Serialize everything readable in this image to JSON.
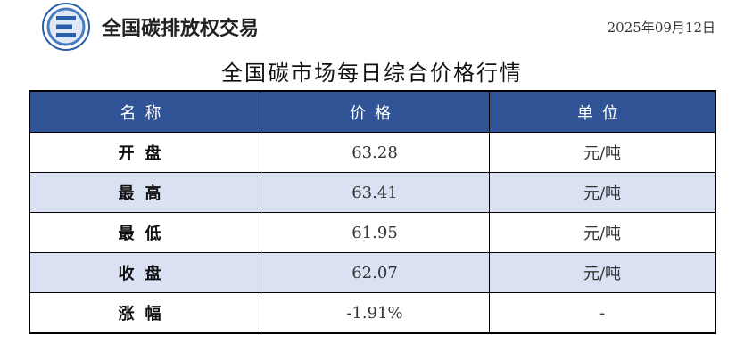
{
  "header": {
    "brand": "全国碳排放权交易",
    "date": "2025年09月12日"
  },
  "title": "全国碳市场每日综合价格行情",
  "colors": {
    "header_bg": "#305496",
    "alt_row": "#D9E1F2"
  },
  "table": {
    "columns": [
      "名称",
      "价格",
      "单位"
    ],
    "rows": [
      {
        "name": "开盘",
        "price": "63.28",
        "unit": "元/吨"
      },
      {
        "name": "最高",
        "price": "63.41",
        "unit": "元/吨"
      },
      {
        "name": "最低",
        "price": "61.95",
        "unit": "元/吨"
      },
      {
        "name": "收盘",
        "price": "62.07",
        "unit": "元/吨"
      },
      {
        "name": "涨幅",
        "price": "-1.91%",
        "unit": "-"
      }
    ]
  }
}
